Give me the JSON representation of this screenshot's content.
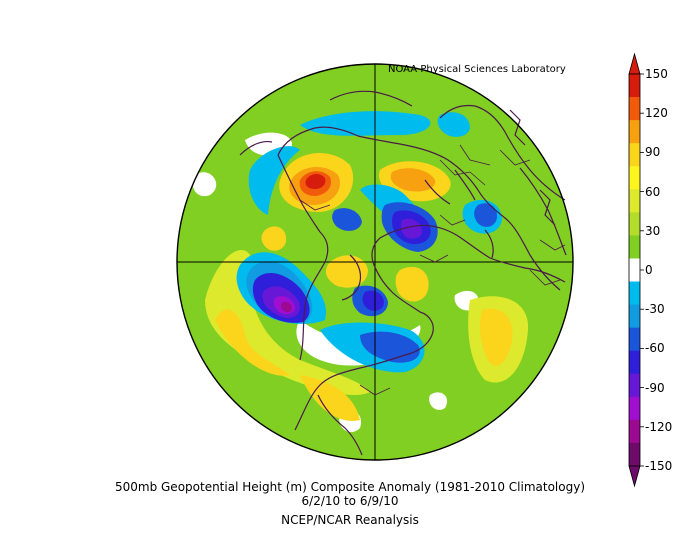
{
  "credit": "NOAA Physical Sciences Laboratory",
  "caption": {
    "line1": "500mb Geopotential Height (m) Composite Anomaly (1981-2010 Climatology)",
    "line2": "6/2/10   to 6/9/10",
    "line3": "NCEP/NCAR Reanalysis"
  },
  "colorbar": {
    "labels": [
      "150",
      "120",
      "90",
      "60",
      "30",
      "0",
      "-30",
      "-60",
      "-90",
      "-120",
      "-150"
    ],
    "colors": [
      "#d61c0c",
      "#f25a0b",
      "#f7a010",
      "#fbd41c",
      "#fdf51e",
      "#dde92c",
      "#b4dc2b",
      "#80cf22",
      "#ffffff",
      "#00bbed",
      "#119ce2",
      "#1b55d9",
      "#2f1fdb",
      "#6618d6",
      "#a00ed0",
      "#9c0a92",
      "#6e0a6a"
    ]
  },
  "anomaly_features": [
    {
      "label": "strong positive",
      "value": 140,
      "color": "#d61c0c"
    },
    {
      "label": "strong negative",
      "value": -120,
      "color": "#a00ed0"
    }
  ]
}
